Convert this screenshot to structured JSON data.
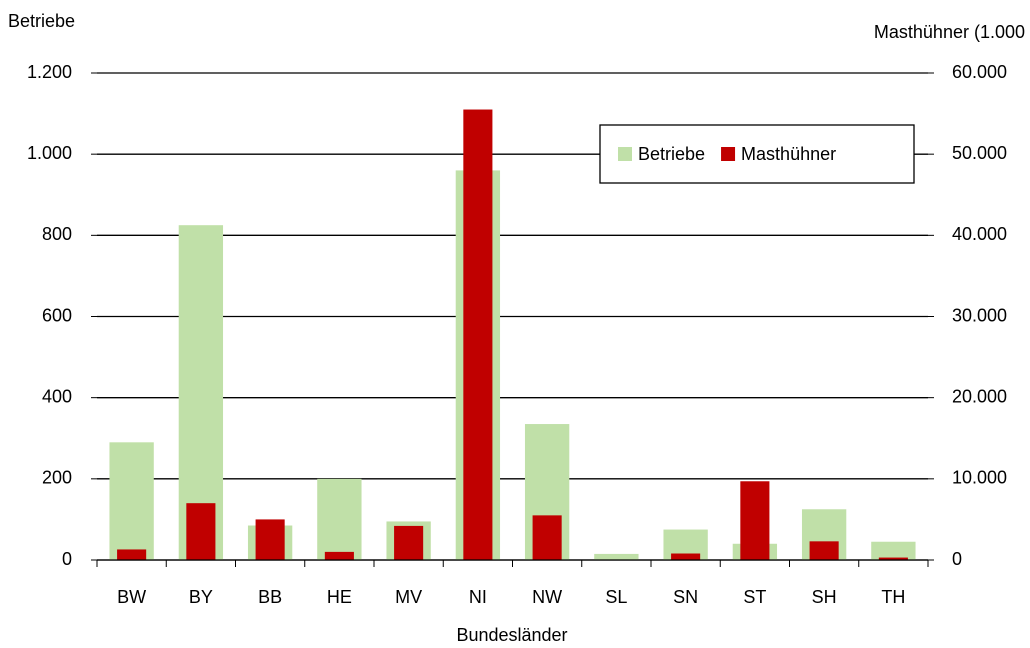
{
  "chart_data": {
    "type": "bar",
    "y_label": "Betriebe",
    "y2_label": "Masthühner (1.000",
    "x_label": "Bundesländer",
    "categories": [
      "BW",
      "BY",
      "BB",
      "HE",
      "MV",
      "NI",
      "NW",
      "SL",
      "SN",
      "ST",
      "SH",
      "TH"
    ],
    "series": [
      {
        "name": "Betriebe",
        "color": "#c0e0a8",
        "values": [
          290,
          825,
          85,
          200,
          95,
          960,
          335,
          15,
          75,
          40,
          125,
          45
        ]
      },
      {
        "name": "Masthühner",
        "color": "#c00000",
        "axis": "y2",
        "values": [
          1300,
          7000,
          5000,
          1000,
          4200,
          55500,
          5500,
          0,
          800,
          9700,
          2300,
          300
        ]
      }
    ],
    "ylim": [
      0,
      1200
    ],
    "yticks": [
      0,
      200,
      400,
      600,
      800,
      {
        "value": 1000,
        "label": "1.000"
      },
      {
        "value": 1200,
        "label": "1.200"
      }
    ],
    "y2lim": [
      0,
      60000
    ],
    "y2ticks": [
      0,
      {
        "value": 10000,
        "label": "10.000"
      },
      {
        "value": 20000,
        "label": "20.000"
      },
      {
        "value": 30000,
        "label": "30.000"
      },
      {
        "value": 40000,
        "label": "40.000"
      },
      {
        "value": 50000,
        "label": "50.000"
      },
      {
        "value": 60000,
        "label": "60.000"
      }
    ],
    "grid": true,
    "legend": "upper right"
  }
}
